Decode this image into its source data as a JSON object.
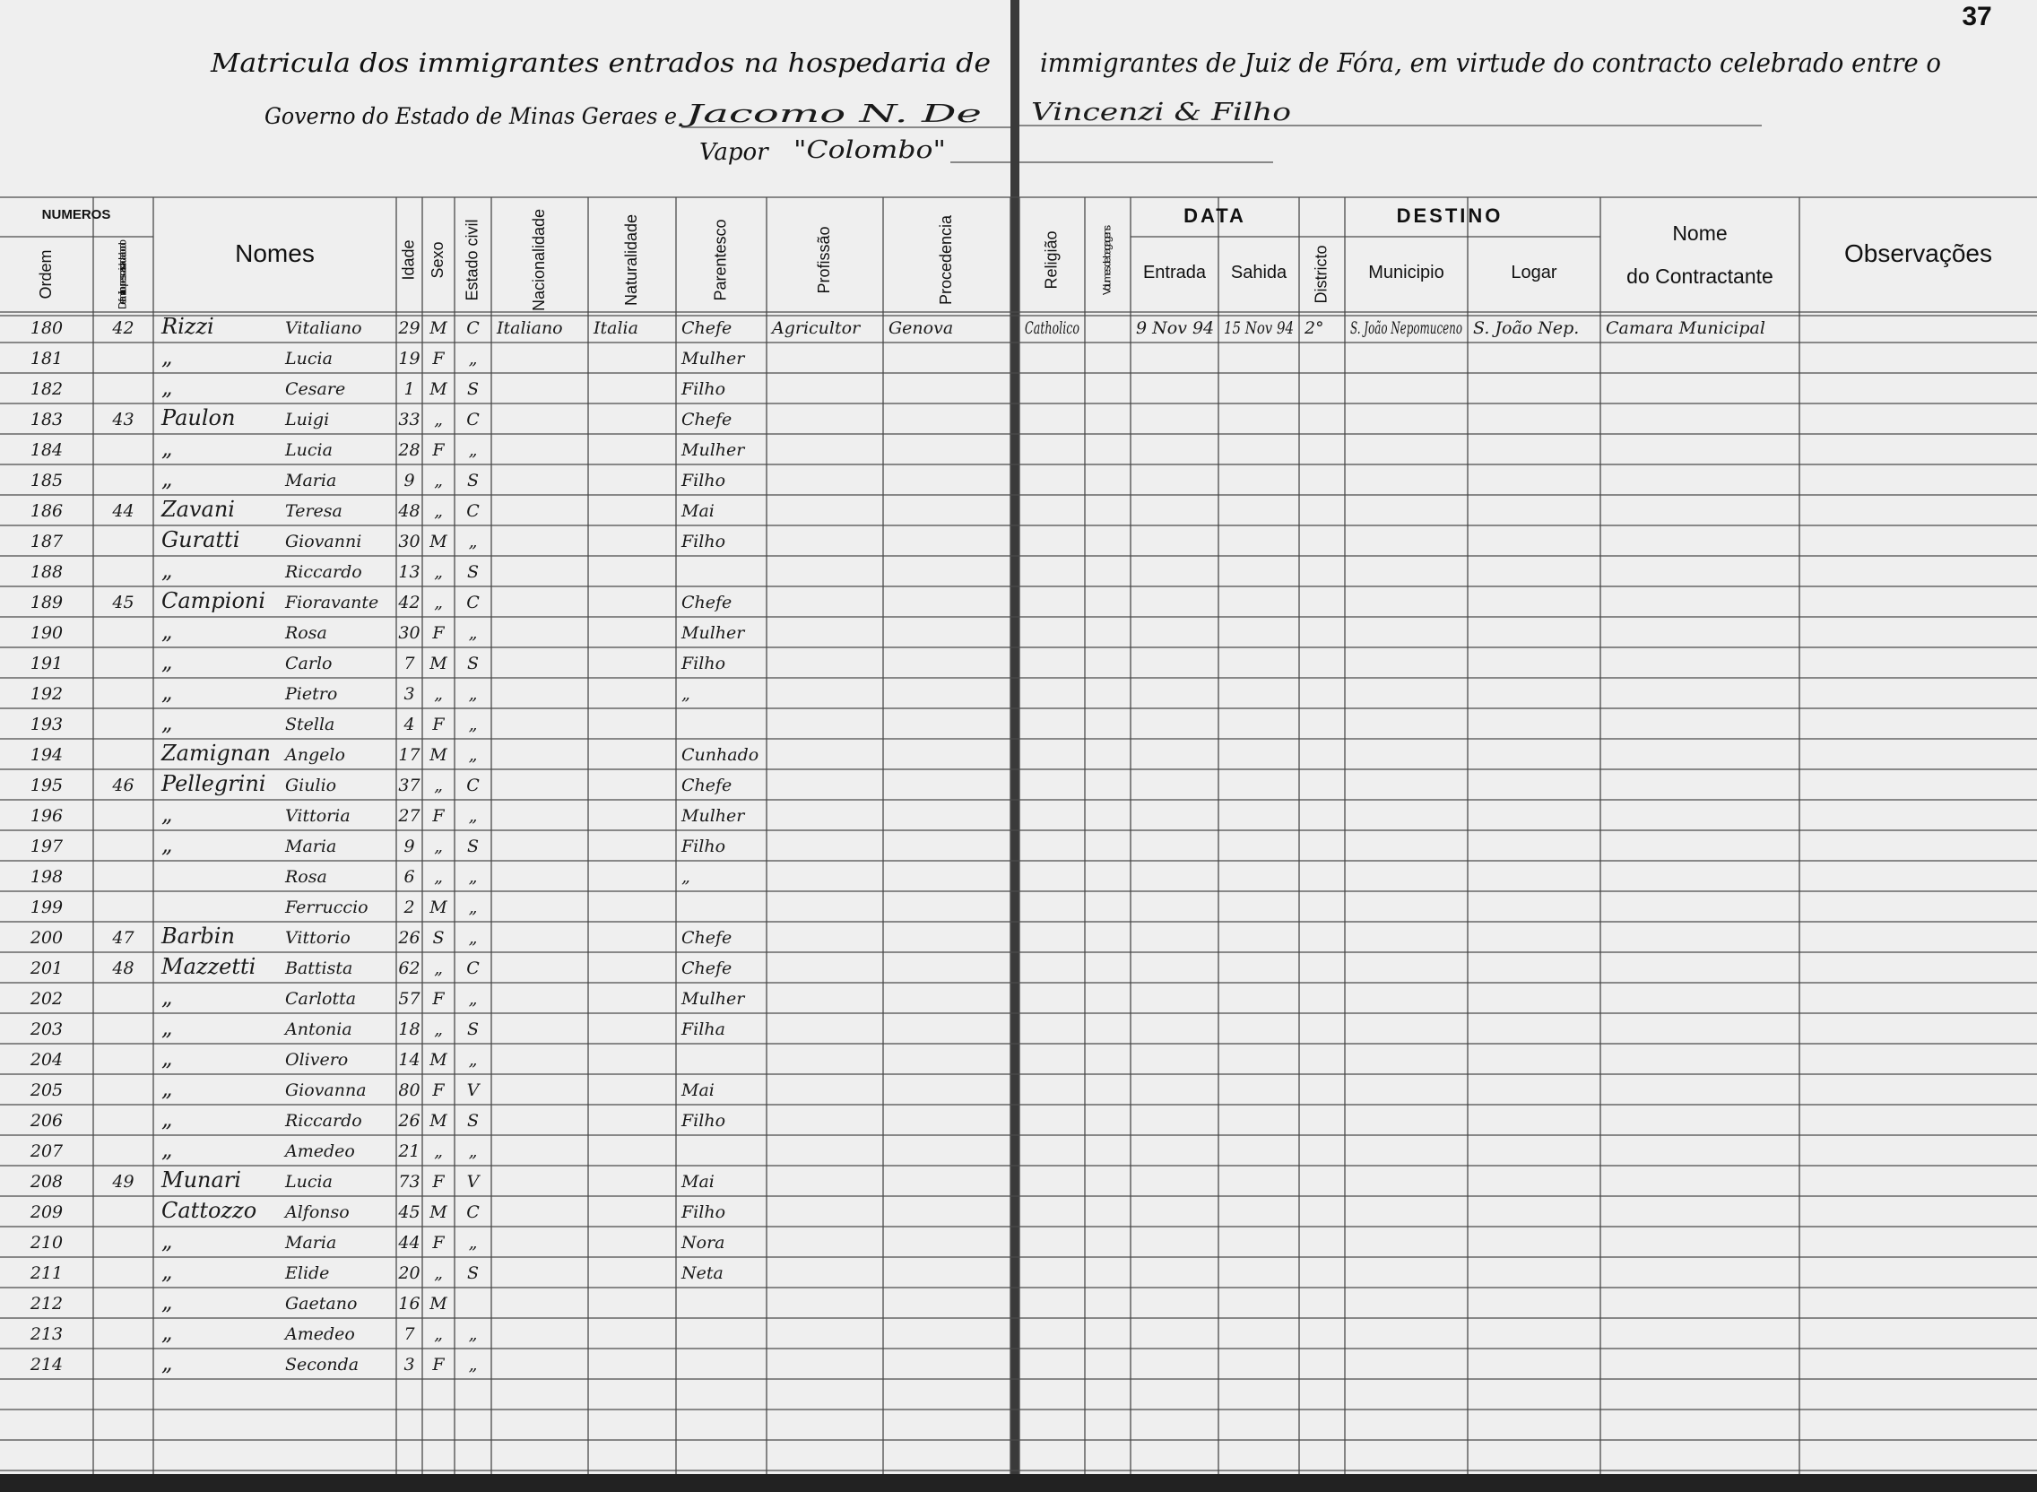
{
  "page_number": "37",
  "title": {
    "line1_left": "Matricula dos immigrantes entrados na hospedaria de",
    "line1_right": "immigrantes de Juiz de Fóra, em virtude do contracto celebrado entre o",
    "line2_left": "Governo do Estado de Minas Geraes e",
    "line2_filled": "Jacomo N. De",
    "line2_right_filled": "Vincenzi & Filho",
    "line3_label": "Vapor",
    "line3_filled": "\"Colombo\""
  },
  "headers": {
    "numeros": "NUMEROS",
    "order": "Ordem",
    "family": "De familia ou pessoa isolada a bordo",
    "names": "Nomes",
    "age": "Idade",
    "sex": "Sexo",
    "civil": "Estado civil",
    "nationality": "Nacionalidade",
    "naturality": "Naturalidade",
    "relation": "Parentesco",
    "profession": "Profissão",
    "origin": "Procedencia",
    "religion": "Religião",
    "luggage": "Volumes de bagagens",
    "data": "DATA",
    "entry": "Entrada",
    "exit": "Sahida",
    "destino": "DESTINO",
    "district": "Districto",
    "municipality": "Municipio",
    "place": "Logar",
    "contractor_1": "Nome",
    "contractor_2": "do Contractante",
    "observations": "Observações"
  },
  "rows": [
    {
      "order": "180",
      "family": "42",
      "surname": "Rizzi",
      "name": "Vitaliano",
      "age": "29",
      "sex": "M",
      "civil": "C",
      "nationality": "Italiano",
      "naturality": "Italia",
      "relation": "Chefe",
      "profession": "Agricultor",
      "origin": "Genova",
      "religion": "Catholico",
      "entry": "9 Nov 94",
      "exit": "15 Nov 94",
      "district": "2°",
      "municipality": "S. João Nepomuceno",
      "place": "S. João Nep.",
      "contractor": "Camara Municipal"
    },
    {
      "order": "181",
      "surname": "„",
      "name": "Lucia",
      "age": "19",
      "sex": "F",
      "civil": "„",
      "relation": "Mulher"
    },
    {
      "order": "182",
      "surname": "„",
      "name": "Cesare",
      "age": "1",
      "sex": "M",
      "civil": "S",
      "relation": "Filho"
    },
    {
      "order": "183",
      "family": "43",
      "surname": "Paulon",
      "name": "Luigi",
      "age": "33",
      "sex": "„",
      "civil": "C",
      "relation": "Chefe"
    },
    {
      "order": "184",
      "surname": "„",
      "name": "Lucia",
      "age": "28",
      "sex": "F",
      "civil": "„",
      "relation": "Mulher"
    },
    {
      "order": "185",
      "surname": "„",
      "name": "Maria",
      "age": "9",
      "sex": "„",
      "civil": "S",
      "relation": "Filho"
    },
    {
      "order": "186",
      "family": "44",
      "surname": "Zavani",
      "name": "Teresa",
      "age": "48",
      "sex": "„",
      "civil": "C",
      "relation": "Mai"
    },
    {
      "order": "187",
      "surname": "Guratti",
      "name": "Giovanni",
      "age": "30",
      "sex": "M",
      "civil": "„",
      "relation": "Filho"
    },
    {
      "order": "188",
      "surname": "„",
      "name": "Riccardo",
      "age": "13",
      "sex": "„",
      "civil": "S"
    },
    {
      "order": "189",
      "family": "45",
      "surname": "Campioni",
      "name": "Fioravante",
      "age": "42",
      "sex": "„",
      "civil": "C",
      "relation": "Chefe"
    },
    {
      "order": "190",
      "surname": "„",
      "name": "Rosa",
      "age": "30",
      "sex": "F",
      "civil": "„",
      "relation": "Mulher"
    },
    {
      "order": "191",
      "surname": "„",
      "name": "Carlo",
      "age": "7",
      "sex": "M",
      "civil": "S",
      "relation": "Filho"
    },
    {
      "order": "192",
      "surname": "„",
      "name": "Pietro",
      "age": "3",
      "sex": "„",
      "civil": "„",
      "relation": "„"
    },
    {
      "order": "193",
      "surname": "„",
      "name": "Stella",
      "age": "4",
      "sex": "F",
      "civil": "„"
    },
    {
      "order": "194",
      "surname": "Zamignan",
      "name": "Angelo",
      "age": "17",
      "sex": "M",
      "civil": "„",
      "relation": "Cunhado"
    },
    {
      "order": "195",
      "family": "46",
      "surname": "Pellegrini",
      "name": "Giulio",
      "age": "37",
      "sex": "„",
      "civil": "C",
      "relation": "Chefe"
    },
    {
      "order": "196",
      "surname": "„",
      "name": "Vittoria",
      "age": "27",
      "sex": "F",
      "civil": "„",
      "relation": "Mulher"
    },
    {
      "order": "197",
      "surname": "„",
      "name": "Maria",
      "age": "9",
      "sex": "„",
      "civil": "S",
      "relation": "Filho"
    },
    {
      "order": "198",
      "name": "Rosa",
      "age": "6",
      "sex": "„",
      "civil": "„",
      "relation": "„"
    },
    {
      "order": "199",
      "name": "Ferruccio",
      "age": "2",
      "sex": "M",
      "civil": "„"
    },
    {
      "order": "200",
      "family": "47",
      "surname": "Barbin",
      "name": "Vittorio",
      "age": "26",
      "sex": "S",
      "civil": "„",
      "relation": "Chefe"
    },
    {
      "order": "201",
      "family": "48",
      "surname": "Mazzetti",
      "name": "Battista",
      "age": "62",
      "sex": "„",
      "civil": "C",
      "relation": "Chefe"
    },
    {
      "order": "202",
      "surname": "„",
      "name": "Carlotta",
      "age": "57",
      "sex": "F",
      "civil": "„",
      "relation": "Mulher"
    },
    {
      "order": "203",
      "surname": "„",
      "name": "Antonia",
      "age": "18",
      "sex": "„",
      "civil": "S",
      "relation": "Filha"
    },
    {
      "order": "204",
      "surname": "„",
      "name": "Olivero",
      "age": "14",
      "sex": "M",
      "civil": "„"
    },
    {
      "order": "205",
      "surname": "„",
      "name": "Giovanna",
      "age": "80",
      "sex": "F",
      "civil": "V",
      "relation": "Mai"
    },
    {
      "order": "206",
      "surname": "„",
      "name": "Riccardo",
      "age": "26",
      "sex": "M",
      "civil": "S",
      "relation": "Filho"
    },
    {
      "order": "207",
      "surname": "„",
      "name": "Amedeo",
      "age": "21",
      "sex": "„",
      "civil": "„"
    },
    {
      "order": "208",
      "family": "49",
      "surname": "Munari",
      "name": "Lucia",
      "age": "73",
      "sex": "F",
      "civil": "V",
      "relation": "Mai"
    },
    {
      "order": "209",
      "surname": "Cattozzo",
      "name": "Alfonso",
      "age": "45",
      "sex": "M",
      "civil": "C",
      "relation": "Filho"
    },
    {
      "order": "210",
      "surname": "„",
      "name": "Maria",
      "age": "44",
      "sex": "F",
      "civil": "„",
      "relation": "Nora"
    },
    {
      "order": "211",
      "surname": "„",
      "name": "Elide",
      "age": "20",
      "sex": "„",
      "civil": "S",
      "relation": "Neta"
    },
    {
      "order": "212",
      "surname": "„",
      "name": "Gaetano",
      "age": "16",
      "sex": "M"
    },
    {
      "order": "213",
      "surname": "„",
      "name": "Amedeo",
      "age": "7",
      "sex": "„",
      "civil": "„"
    },
    {
      "order": "214",
      "surname": "„",
      "name": "Seconda",
      "age": "3",
      "sex": "F",
      "civil": "„"
    }
  ]
}
